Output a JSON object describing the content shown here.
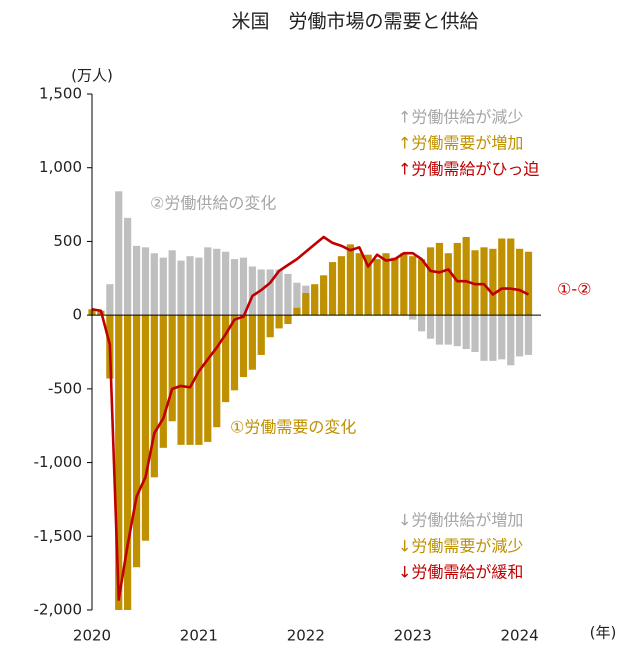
{
  "chart_data": {
    "type": "bar_line",
    "title": "米国　労働市場の需要と供給",
    "y_unit": "(万人)",
    "x_unit": "(年)",
    "x": [
      2020,
      2020.083,
      2020.167,
      2020.25,
      2020.333,
      2020.417,
      2020.5,
      2020.583,
      2020.667,
      2020.75,
      2020.833,
      2020.917,
      2021,
      2021.083,
      2021.167,
      2021.25,
      2021.333,
      2021.417,
      2021.5,
      2021.583,
      2021.667,
      2021.75,
      2021.833,
      2021.917,
      2022,
      2022.083,
      2022.167,
      2022.25,
      2022.333,
      2022.417,
      2022.5,
      2022.583,
      2022.667,
      2022.75,
      2022.833,
      2022.917,
      2023,
      2023.083,
      2023.167,
      2023.25,
      2023.333,
      2023.417,
      2023.5,
      2023.583,
      2023.667,
      2023.75,
      2023.833,
      2023.917,
      2024,
      2024.083
    ],
    "series": [
      {
        "name": "②労働供給の変化",
        "kind": "bar",
        "color": "#bfbfbf",
        "values": [
          0,
          0,
          210,
          840,
          660,
          470,
          460,
          420,
          390,
          440,
          370,
          400,
          390,
          460,
          450,
          430,
          380,
          390,
          330,
          310,
          310,
          310,
          280,
          220,
          200,
          180,
          120,
          90,
          60,
          40,
          30,
          20,
          10,
          0,
          10,
          20,
          -30,
          -110,
          -160,
          -200,
          -200,
          -210,
          -230,
          -250,
          -310,
          -310,
          -300,
          -340,
          -280,
          -270
        ]
      },
      {
        "name": "①労働需要の変化",
        "kind": "bar",
        "color": "#bf9000",
        "values": [
          40,
          30,
          -430,
          -2000,
          -2000,
          -1710,
          -1530,
          -1100,
          -900,
          -720,
          -880,
          -880,
          -880,
          -860,
          -760,
          -590,
          -510,
          -420,
          -370,
          -270,
          -150,
          -90,
          -60,
          50,
          150,
          210,
          270,
          360,
          400,
          480,
          420,
          410,
          380,
          420,
          390,
          420,
          400,
          380,
          460,
          490,
          420,
          490,
          530,
          440,
          460,
          450,
          520,
          520,
          450,
          430
        ]
      },
      {
        "name": "①-②",
        "kind": "line",
        "color": "#c00000",
        "values": [
          40,
          30,
          -200,
          -1930,
          -1560,
          -1230,
          -1100,
          -800,
          -700,
          -500,
          -480,
          -490,
          -380,
          -300,
          -220,
          -130,
          -30,
          -10,
          130,
          170,
          220,
          300,
          340,
          380,
          430,
          480,
          530,
          490,
          470,
          440,
          460,
          330,
          410,
          370,
          380,
          420,
          420,
          380,
          300,
          290,
          310,
          230,
          230,
          210,
          210,
          140,
          180,
          180,
          170,
          140
        ]
      }
    ],
    "annotations_up": [
      {
        "text": "↑労働供給が減少",
        "color": "#a6a6a6"
      },
      {
        "text": "↑労働需要が増加",
        "color": "#bf9000"
      },
      {
        "text": "↑労働需給がひっ迫",
        "color": "#c00000"
      }
    ],
    "annotations_down": [
      {
        "text": "↓労働供給が増加",
        "color": "#a6a6a6"
      },
      {
        "text": "↓労働需要が減少",
        "color": "#bf9000"
      },
      {
        "text": "↓労働需給が緩和",
        "color": "#c00000"
      }
    ],
    "xlim": [
      2020,
      2024.2
    ],
    "xticks": [
      2020,
      2021,
      2022,
      2023,
      2024
    ],
    "ylim": [
      -2000,
      1500
    ],
    "yticks": [
      {
        "value": -2000,
        "label": "-2,000"
      },
      {
        "value": -1500,
        "label": "-1,500"
      },
      {
        "value": -1000,
        "label": "-1,000"
      },
      -500,
      0,
      500,
      {
        "value": 1000,
        "label": "1,000"
      },
      {
        "value": 1500,
        "label": "1,500"
      }
    ],
    "grid": false
  }
}
